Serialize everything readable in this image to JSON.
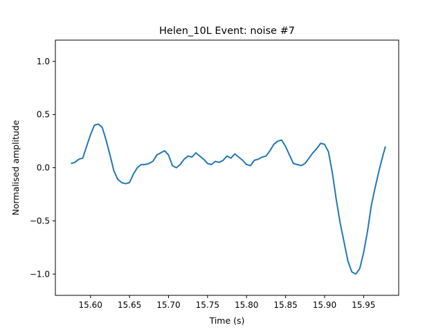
{
  "chart_data": {
    "type": "line",
    "title": "Helen_10L Event: noise #7",
    "xlabel": "Time (s)",
    "ylabel": "Normalised amplitude",
    "xlim": [
      15.555,
      15.995
    ],
    "ylim": [
      -1.2,
      1.2
    ],
    "xticks": [
      15.6,
      15.65,
      15.7,
      15.75,
      15.8,
      15.85,
      15.9,
      15.95
    ],
    "xtick_labels": [
      "15.60",
      "15.65",
      "15.70",
      "15.75",
      "15.80",
      "15.85",
      "15.90",
      "15.95"
    ],
    "yticks": [
      -1.0,
      -0.5,
      0.0,
      0.5,
      1.0
    ],
    "ytick_labels": [
      "−1.0",
      "−0.5",
      "0.0",
      "0.5",
      "1.0"
    ],
    "grid": false,
    "series": [
      {
        "color": "#1f77b4",
        "points": [
          [
            15.575,
            0.04
          ],
          [
            15.58,
            0.05
          ],
          [
            15.585,
            0.08
          ],
          [
            15.59,
            0.09
          ],
          [
            15.595,
            0.2
          ],
          [
            15.6,
            0.31
          ],
          [
            15.605,
            0.4
          ],
          [
            15.61,
            0.41
          ],
          [
            15.615,
            0.38
          ],
          [
            15.62,
            0.26
          ],
          [
            15.625,
            0.12
          ],
          [
            15.63,
            -0.03
          ],
          [
            15.635,
            -0.11
          ],
          [
            15.64,
            -0.14
          ],
          [
            15.645,
            -0.15
          ],
          [
            15.65,
            -0.14
          ],
          [
            15.655,
            -0.06
          ],
          [
            15.66,
            0.0
          ],
          [
            15.665,
            0.03
          ],
          [
            15.67,
            0.03
          ],
          [
            15.675,
            0.04
          ],
          [
            15.68,
            0.06
          ],
          [
            15.685,
            0.12
          ],
          [
            15.69,
            0.14
          ],
          [
            15.695,
            0.16
          ],
          [
            15.7,
            0.12
          ],
          [
            15.705,
            0.02
          ],
          [
            15.71,
            0.0
          ],
          [
            15.715,
            0.03
          ],
          [
            15.72,
            0.08
          ],
          [
            15.725,
            0.11
          ],
          [
            15.73,
            0.1
          ],
          [
            15.735,
            0.14
          ],
          [
            15.74,
            0.11
          ],
          [
            15.745,
            0.08
          ],
          [
            15.75,
            0.04
          ],
          [
            15.755,
            0.03
          ],
          [
            15.76,
            0.06
          ],
          [
            15.765,
            0.05
          ],
          [
            15.77,
            0.07
          ],
          [
            15.775,
            0.11
          ],
          [
            15.78,
            0.09
          ],
          [
            15.785,
            0.13
          ],
          [
            15.79,
            0.1
          ],
          [
            15.795,
            0.07
          ],
          [
            15.8,
            0.03
          ],
          [
            15.805,
            0.02
          ],
          [
            15.81,
            0.07
          ],
          [
            15.815,
            0.08
          ],
          [
            15.82,
            0.1
          ],
          [
            15.825,
            0.11
          ],
          [
            15.83,
            0.16
          ],
          [
            15.835,
            0.22
          ],
          [
            15.84,
            0.25
          ],
          [
            15.845,
            0.26
          ],
          [
            15.85,
            0.2
          ],
          [
            15.855,
            0.12
          ],
          [
            15.86,
            0.04
          ],
          [
            15.865,
            0.03
          ],
          [
            15.87,
            0.02
          ],
          [
            15.875,
            0.04
          ],
          [
            15.88,
            0.09
          ],
          [
            15.885,
            0.14
          ],
          [
            15.89,
            0.18
          ],
          [
            15.895,
            0.23
          ],
          [
            15.9,
            0.22
          ],
          [
            15.905,
            0.15
          ],
          [
            15.91,
            -0.05
          ],
          [
            15.915,
            -0.3
          ],
          [
            15.92,
            -0.52
          ],
          [
            15.925,
            -0.7
          ],
          [
            15.93,
            -0.88
          ],
          [
            15.935,
            -0.98
          ],
          [
            15.94,
            -1.0
          ],
          [
            15.945,
            -0.95
          ],
          [
            15.95,
            -0.8
          ],
          [
            15.955,
            -0.6
          ],
          [
            15.96,
            -0.35
          ],
          [
            15.965,
            -0.18
          ],
          [
            15.97,
            -0.02
          ],
          [
            15.975,
            0.12
          ],
          [
            15.978,
            0.2
          ]
        ]
      }
    ]
  }
}
